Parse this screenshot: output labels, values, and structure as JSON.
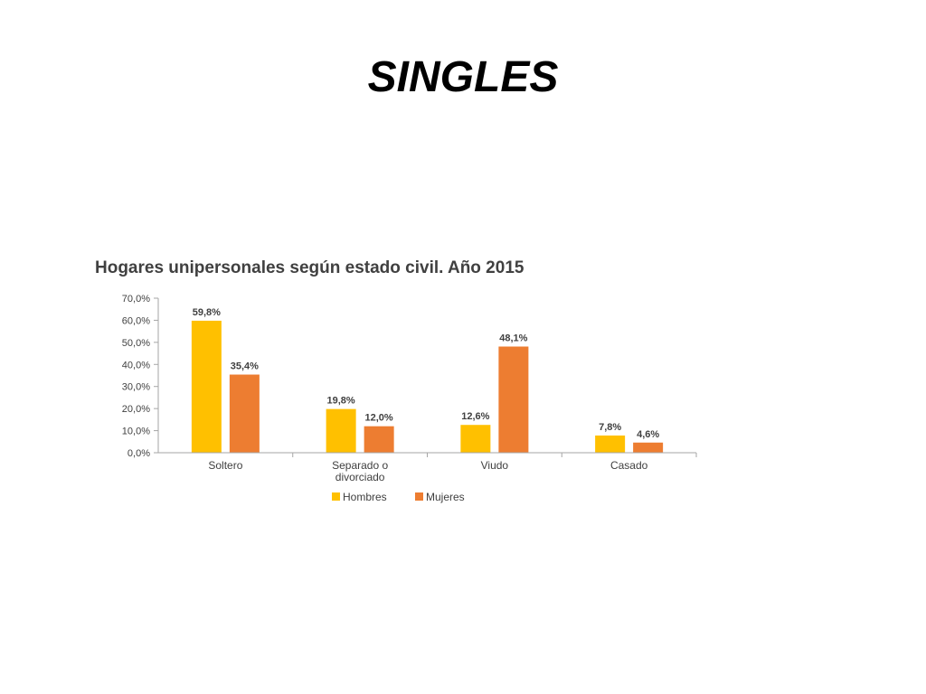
{
  "slide": {
    "title": "SINGLES"
  },
  "chart_data": {
    "type": "bar",
    "title": "Hogares unipersonales según estado civil. Año 2015",
    "categories": [
      "Soltero",
      "Separado o divorciado",
      "Viudo",
      "Casado"
    ],
    "category_lines": [
      [
        "Soltero"
      ],
      [
        "Separado o",
        "divorciado"
      ],
      [
        "Viudo"
      ],
      [
        "Casado"
      ]
    ],
    "series": [
      {
        "name": "Hombres",
        "color": "#FFC000",
        "values": [
          59.8,
          19.8,
          12.6,
          7.8
        ],
        "labels": [
          "59,8%",
          "19,8%",
          "12,6%",
          "7,8%"
        ]
      },
      {
        "name": "Mujeres",
        "color": "#ED7D31",
        "values": [
          35.4,
          12.0,
          48.1,
          4.6
        ],
        "labels": [
          "35,4%",
          "12,0%",
          "48,1%",
          "4,6%"
        ]
      }
    ],
    "ylim": [
      0,
      70
    ],
    "yticks": [
      0,
      10,
      20,
      30,
      40,
      50,
      60,
      70
    ],
    "ytick_labels": [
      "0,0%",
      "10,0%",
      "20,0%",
      "30,0%",
      "40,0%",
      "50,0%",
      "60,0%",
      "70,0%"
    ],
    "xlabel": "",
    "ylabel": "",
    "grid": false,
    "legend_position": "bottom"
  }
}
